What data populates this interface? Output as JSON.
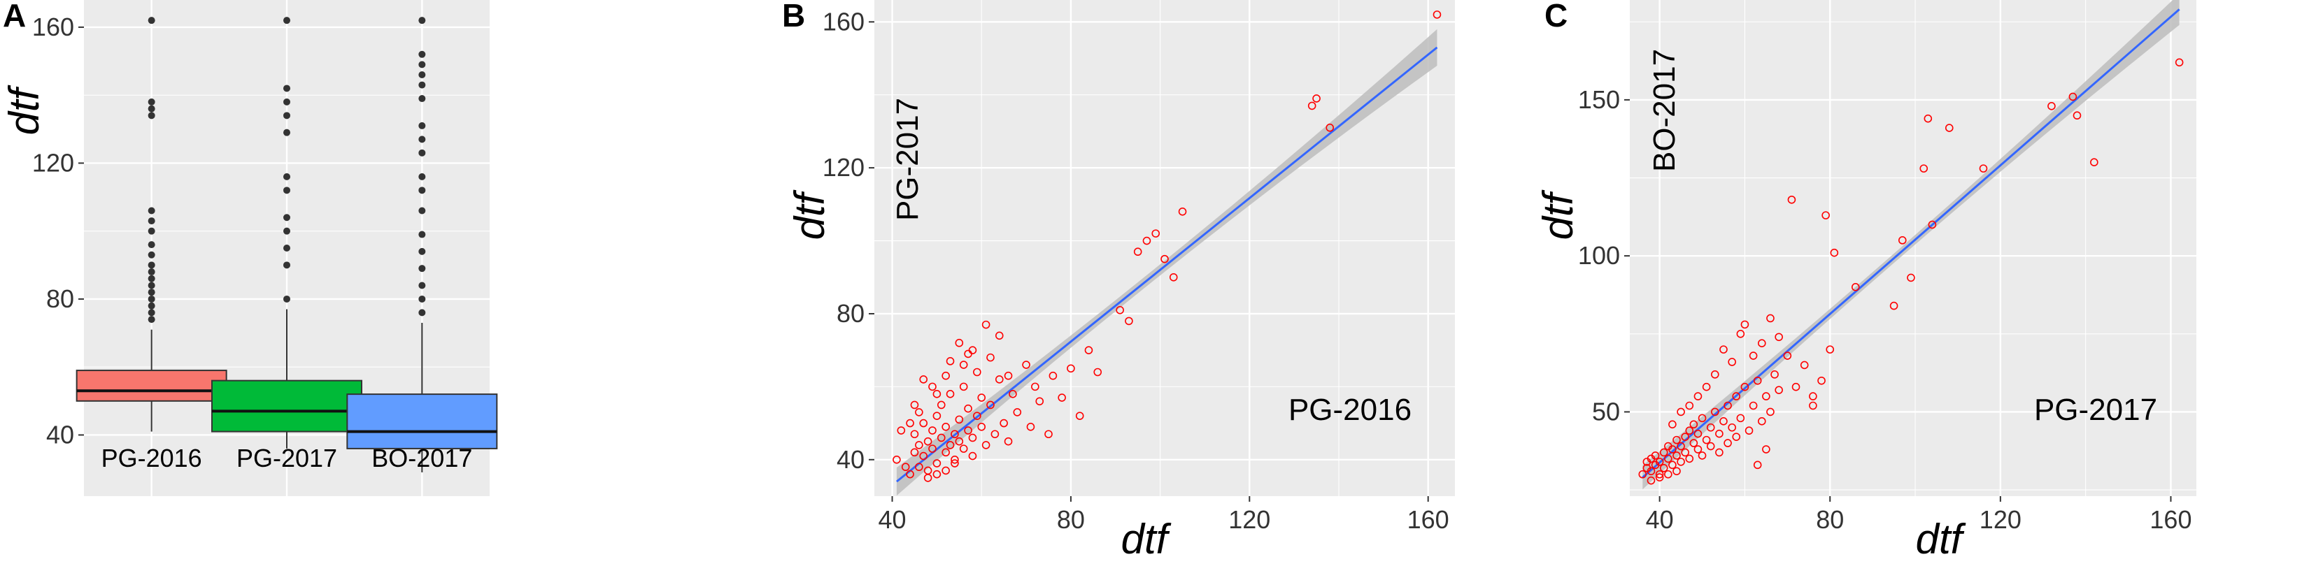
{
  "panels": {
    "A": {
      "letter": "A"
    },
    "B": {
      "letter": "B"
    },
    "C": {
      "letter": "C"
    }
  },
  "colors": {
    "panel_bg": "#ebebeb",
    "grid": "#ffffff",
    "box_pg2016": "#f8766d",
    "box_pg2017": "#00ba38",
    "box_bo2017": "#619cff",
    "point": "#ff0000",
    "fit_line": "#3366ff",
    "ci_band": "#bdbdbd",
    "outlier": "#333333"
  },
  "chart_data": [
    {
      "panel": "A",
      "type": "box",
      "categories": [
        "PG-2016",
        "PG-2017",
        "BO-2017"
      ],
      "ylabel": "dtf",
      "ylim": [
        22,
        168
      ],
      "yticks": [
        40,
        80,
        120,
        160
      ],
      "grid": true,
      "boxes": [
        {
          "name": "PG-2016",
          "whisker_low": 41,
          "q1": 50,
          "median": 53,
          "q3": 59,
          "whisker_high": 71,
          "outliers": [
            74,
            76,
            78,
            80,
            82,
            84,
            86,
            88,
            90,
            93,
            96,
            100,
            103,
            106,
            134,
            136,
            138,
            162
          ]
        },
        {
          "name": "PG-2017",
          "whisker_low": 36,
          "q1": 41,
          "median": 47,
          "q3": 56,
          "whisker_high": 77,
          "outliers": [
            80,
            90,
            95,
            100,
            104,
            112,
            116,
            129,
            134,
            138,
            142,
            162
          ]
        },
        {
          "name": "BO-2017",
          "whisker_low": 29,
          "q1": 36,
          "median": 41,
          "q3": 52,
          "whisker_high": 73,
          "outliers": [
            76,
            80,
            84,
            89,
            94,
            99,
            106,
            112,
            116,
            123,
            127,
            131,
            139,
            143,
            146,
            149,
            152,
            162
          ]
        }
      ]
    },
    {
      "panel": "B",
      "type": "scatter",
      "xlabel": "dtf",
      "ylabel": "",
      "xlim": [
        36,
        166
      ],
      "ylim": [
        30,
        166
      ],
      "xticks": [
        40,
        80,
        120,
        160
      ],
      "yticks": [
        40,
        80,
        120,
        160
      ],
      "x_axis_name": "PG-2016",
      "y_axis_name": "PG-2017",
      "grid": true,
      "fit": {
        "x": [
          41,
          162
        ],
        "y": [
          34,
          153
        ],
        "ci_halfwidth_ends": 5,
        "ci_halfwidth_mid": 1.5
      },
      "points": [
        [
          41,
          40
        ],
        [
          43,
          38
        ],
        [
          44,
          36
        ],
        [
          45,
          42
        ],
        [
          45,
          47
        ],
        [
          46,
          44
        ],
        [
          46,
          38
        ],
        [
          47,
          50
        ],
        [
          47,
          41
        ],
        [
          48,
          45
        ],
        [
          48,
          37
        ],
        [
          49,
          48
        ],
        [
          49,
          43
        ],
        [
          50,
          52
        ],
        [
          50,
          39
        ],
        [
          51,
          46
        ],
        [
          51,
          55
        ],
        [
          52,
          42
        ],
        [
          52,
          49
        ],
        [
          53,
          44
        ],
        [
          53,
          58
        ],
        [
          54,
          47
        ],
        [
          54,
          40
        ],
        [
          55,
          51
        ],
        [
          55,
          45
        ],
        [
          56,
          43
        ],
        [
          56,
          60
        ],
        [
          57,
          48
        ],
        [
          57,
          54
        ],
        [
          58,
          46
        ],
        [
          58,
          41
        ],
        [
          59,
          52
        ],
        [
          60,
          49
        ],
        [
          60,
          57
        ],
        [
          61,
          44
        ],
        [
          62,
          55
        ],
        [
          63,
          47
        ],
        [
          64,
          62
        ],
        [
          65,
          50
        ],
        [
          66,
          45
        ],
        [
          67,
          58
        ],
        [
          68,
          53
        ],
        [
          70,
          66
        ],
        [
          71,
          49
        ],
        [
          72,
          60
        ],
        [
          73,
          56
        ],
        [
          75,
          47
        ],
        [
          76,
          63
        ],
        [
          78,
          57
        ],
        [
          80,
          65
        ],
        [
          82,
          52
        ],
        [
          84,
          70
        ],
        [
          86,
          64
        ],
        [
          45,
          55
        ],
        [
          47,
          62
        ],
        [
          49,
          60
        ],
        [
          50,
          58
        ],
        [
          52,
          63
        ],
        [
          53,
          67
        ],
        [
          55,
          72
        ],
        [
          58,
          70
        ],
        [
          61,
          77
        ],
        [
          62,
          68
        ],
        [
          64,
          74
        ],
        [
          66,
          63
        ],
        [
          48,
          35
        ],
        [
          50,
          36
        ],
        [
          52,
          37
        ],
        [
          54,
          39
        ],
        [
          44,
          50
        ],
        [
          46,
          53
        ],
        [
          42,
          48
        ],
        [
          56,
          66
        ],
        [
          59,
          64
        ],
        [
          57,
          69
        ],
        [
          91,
          81
        ],
        [
          93,
          78
        ],
        [
          95,
          97
        ],
        [
          97,
          100
        ],
        [
          99,
          102
        ],
        [
          101,
          95
        ],
        [
          103,
          90
        ],
        [
          105,
          108
        ],
        [
          134,
          137
        ],
        [
          135,
          139
        ],
        [
          138,
          131
        ],
        [
          162,
          162
        ]
      ]
    },
    {
      "panel": "C",
      "type": "scatter",
      "xlabel": "dtf",
      "ylabel": "",
      "xlim": [
        33,
        166
      ],
      "ylim": [
        23,
        182
      ],
      "xticks": [
        40,
        80,
        120,
        160
      ],
      "yticks": [
        50,
        100,
        150
      ],
      "x_axis_name": "PG-2017",
      "y_axis_name": "BO-2017",
      "grid": true,
      "fit": {
        "x": [
          36,
          162
        ],
        "y": [
          29,
          179
        ],
        "ci_halfwidth_ends": 5,
        "ci_halfwidth_mid": 1.5
      },
      "points": [
        [
          36,
          30
        ],
        [
          37,
          32
        ],
        [
          37,
          34
        ],
        [
          38,
          31
        ],
        [
          38,
          35
        ],
        [
          39,
          33
        ],
        [
          39,
          36
        ],
        [
          40,
          30
        ],
        [
          40,
          34
        ],
        [
          41,
          37
        ],
        [
          41,
          32
        ],
        [
          42,
          35
        ],
        [
          42,
          39
        ],
        [
          43,
          33
        ],
        [
          43,
          38
        ],
        [
          44,
          36
        ],
        [
          44,
          41
        ],
        [
          45,
          34
        ],
        [
          45,
          39
        ],
        [
          46,
          42
        ],
        [
          46,
          37
        ],
        [
          47,
          35
        ],
        [
          47,
          44
        ],
        [
          48,
          40
        ],
        [
          48,
          46
        ],
        [
          49,
          38
        ],
        [
          49,
          43
        ],
        [
          50,
          36
        ],
        [
          50,
          48
        ],
        [
          51,
          41
        ],
        [
          52,
          45
        ],
        [
          52,
          39
        ],
        [
          53,
          50
        ],
        [
          54,
          43
        ],
        [
          54,
          37
        ],
        [
          55,
          47
        ],
        [
          56,
          52
        ],
        [
          56,
          40
        ],
        [
          57,
          45
        ],
        [
          58,
          55
        ],
        [
          58,
          42
        ],
        [
          59,
          48
        ],
        [
          60,
          58
        ],
        [
          61,
          44
        ],
        [
          62,
          52
        ],
        [
          63,
          60
        ],
        [
          64,
          47
        ],
        [
          65,
          55
        ],
        [
          66,
          50
        ],
        [
          67,
          62
        ],
        [
          68,
          57
        ],
        [
          70,
          68
        ],
        [
          72,
          58
        ],
        [
          74,
          65
        ],
        [
          76,
          55
        ],
        [
          78,
          60
        ],
        [
          80,
          70
        ],
        [
          38,
          28
        ],
        [
          40,
          29
        ],
        [
          42,
          30
        ],
        [
          44,
          31
        ],
        [
          43,
          46
        ],
        [
          45,
          50
        ],
        [
          47,
          52
        ],
        [
          49,
          55
        ],
        [
          51,
          58
        ],
        [
          53,
          62
        ],
        [
          55,
          70
        ],
        [
          57,
          66
        ],
        [
          59,
          75
        ],
        [
          60,
          78
        ],
        [
          62,
          68
        ],
        [
          64,
          72
        ],
        [
          66,
          80
        ],
        [
          68,
          74
        ],
        [
          63,
          33
        ],
        [
          65,
          38
        ],
        [
          71,
          118
        ],
        [
          76,
          52
        ],
        [
          79,
          113
        ],
        [
          81,
          101
        ],
        [
          86,
          90
        ],
        [
          95,
          84
        ],
        [
          97,
          105
        ],
        [
          99,
          93
        ],
        [
          102,
          128
        ],
        [
          103,
          144
        ],
        [
          104,
          110
        ],
        [
          108,
          141
        ],
        [
          116,
          128
        ],
        [
          132,
          148
        ],
        [
          137,
          151
        ],
        [
          138,
          145
        ],
        [
          142,
          130
        ],
        [
          162,
          162
        ]
      ]
    }
  ]
}
